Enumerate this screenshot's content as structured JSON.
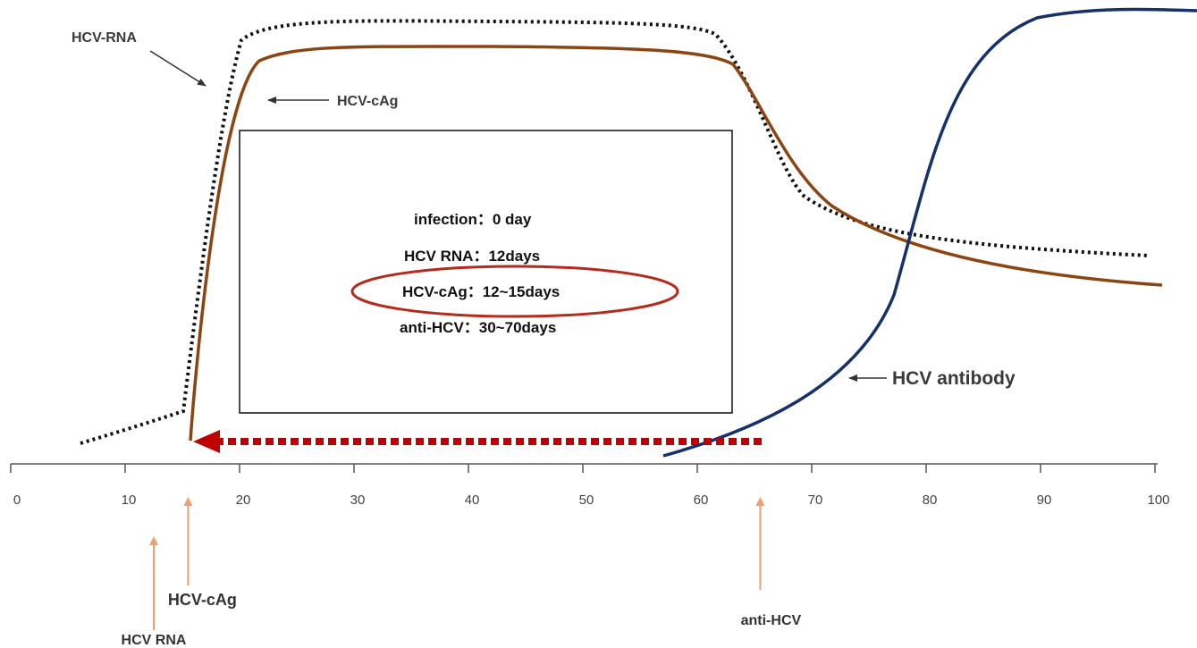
{
  "colors": {
    "rna": "#111111",
    "cag": "#8B4513",
    "antibody": "#15306b",
    "window_arrow": "#c00000",
    "ellipse": "#b52a1c",
    "marker": "#f0a070",
    "axis": "#555555"
  },
  "labels": {
    "hcv_rna": "HCV-RNA",
    "hcv_cag": "HCV-cAg",
    "hcv_antibody": "HCV antibody"
  },
  "info_box": {
    "line1": "infection：0 day",
    "line2": "HCV RNA：12days",
    "line3": "HCV-cAg：12~15days",
    "line4": "anti-HCV：30~70days"
  },
  "axis": {
    "ticks": [
      "0",
      "10",
      "20",
      "30",
      "40",
      "50",
      "60",
      "70",
      "80",
      "90",
      "100"
    ]
  },
  "markers": [
    {
      "label": "HCV RNA",
      "day": 12.5
    },
    {
      "label": "HCV-cAg",
      "day": 15.5
    },
    {
      "label": "anti-HCV",
      "day": 65.5
    }
  ],
  "icons": [
    "left-arrow-icon",
    "dashed-left-arrow-icon",
    "up-arrow-icon"
  ]
}
